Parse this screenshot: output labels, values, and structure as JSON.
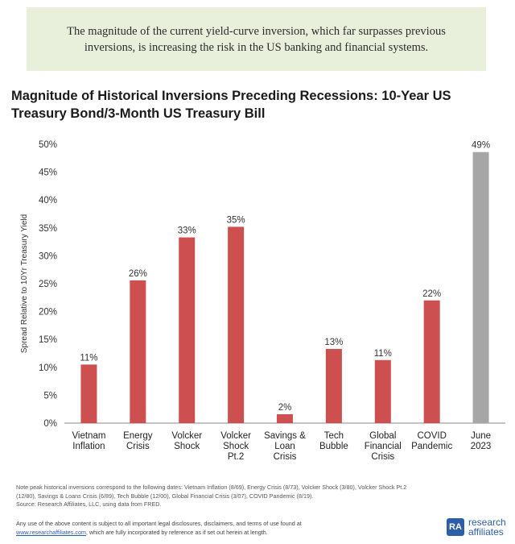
{
  "banner": {
    "text": "The magnitude of the current yield-curve inversion, which far surpasses previous inversions, is increasing the risk in the US banking and financial systems."
  },
  "colors": {
    "bar": "#cd4f4f",
    "highlight_bar": "#a6a6a6",
    "banner_bg": "#e8f0dc",
    "brand": "#2d5ea8"
  },
  "chart_data": {
    "type": "bar",
    "title": "Magnitude of Historical Inversions Preceding Recessions: 10-Year US Treasury Bond/3-Month US Treasury Bill",
    "xlabel": "",
    "ylabel": "Spread Relative to 10Yr Treasury Yield",
    "ylim": [
      0,
      50
    ],
    "yticks": [
      "0%",
      "5%",
      "10%",
      "15%",
      "20%",
      "25%",
      "30%",
      "35%",
      "40%",
      "45%",
      "50%"
    ],
    "categories": [
      [
        "Vietnam",
        "Inflation"
      ],
      [
        "Energy",
        "Crisis"
      ],
      [
        "Volcker",
        "Shock"
      ],
      [
        "Volcker",
        "Shock",
        "Pt.2"
      ],
      [
        "Savings &",
        "Loan",
        "Crisis"
      ],
      [
        "Tech",
        "Bubble"
      ],
      [
        "Global",
        "Financial",
        "Crisis"
      ],
      [
        "COVID",
        "Pandemic"
      ],
      [
        "June",
        "2023"
      ]
    ],
    "values": [
      10.5,
      25.6,
      33.3,
      35.2,
      1.6,
      13.3,
      11.3,
      22.0,
      48.6
    ],
    "labels": [
      "11%",
      "26%",
      "33%",
      "35%",
      "2%",
      "13%",
      "11%",
      "22%",
      "49%"
    ],
    "highlight_index": 8,
    "grid": false
  },
  "footer": {
    "note_line1": "Note peak historical inversions correspond to the following dates: Vietnam Inflation (8/69), Energy Crisis (8/73), Volcker Shock (3/80), Volcker Shock Pt.2",
    "note_line2": "(12/80), Savings & Loans Crisis (6/89), Tech Bubble (12/00), Global Financial Crisis (3/07), COVID Pandemic (8/19).",
    "source": "Source: Research Affiliates, LLC, using data from FRED.",
    "disclaimer_line1": "Any use of the above content is subject to all important legal disclosures, disclaimers, and terms of use found at",
    "disclaimer_link": "www.researchaffiliates.com",
    "disclaimer_line2_rest": ", which are fully incorporated by reference as if set out herein at length.",
    "logo_mark": "RA",
    "logo_line1": "research",
    "logo_line2": "affiliates"
  }
}
